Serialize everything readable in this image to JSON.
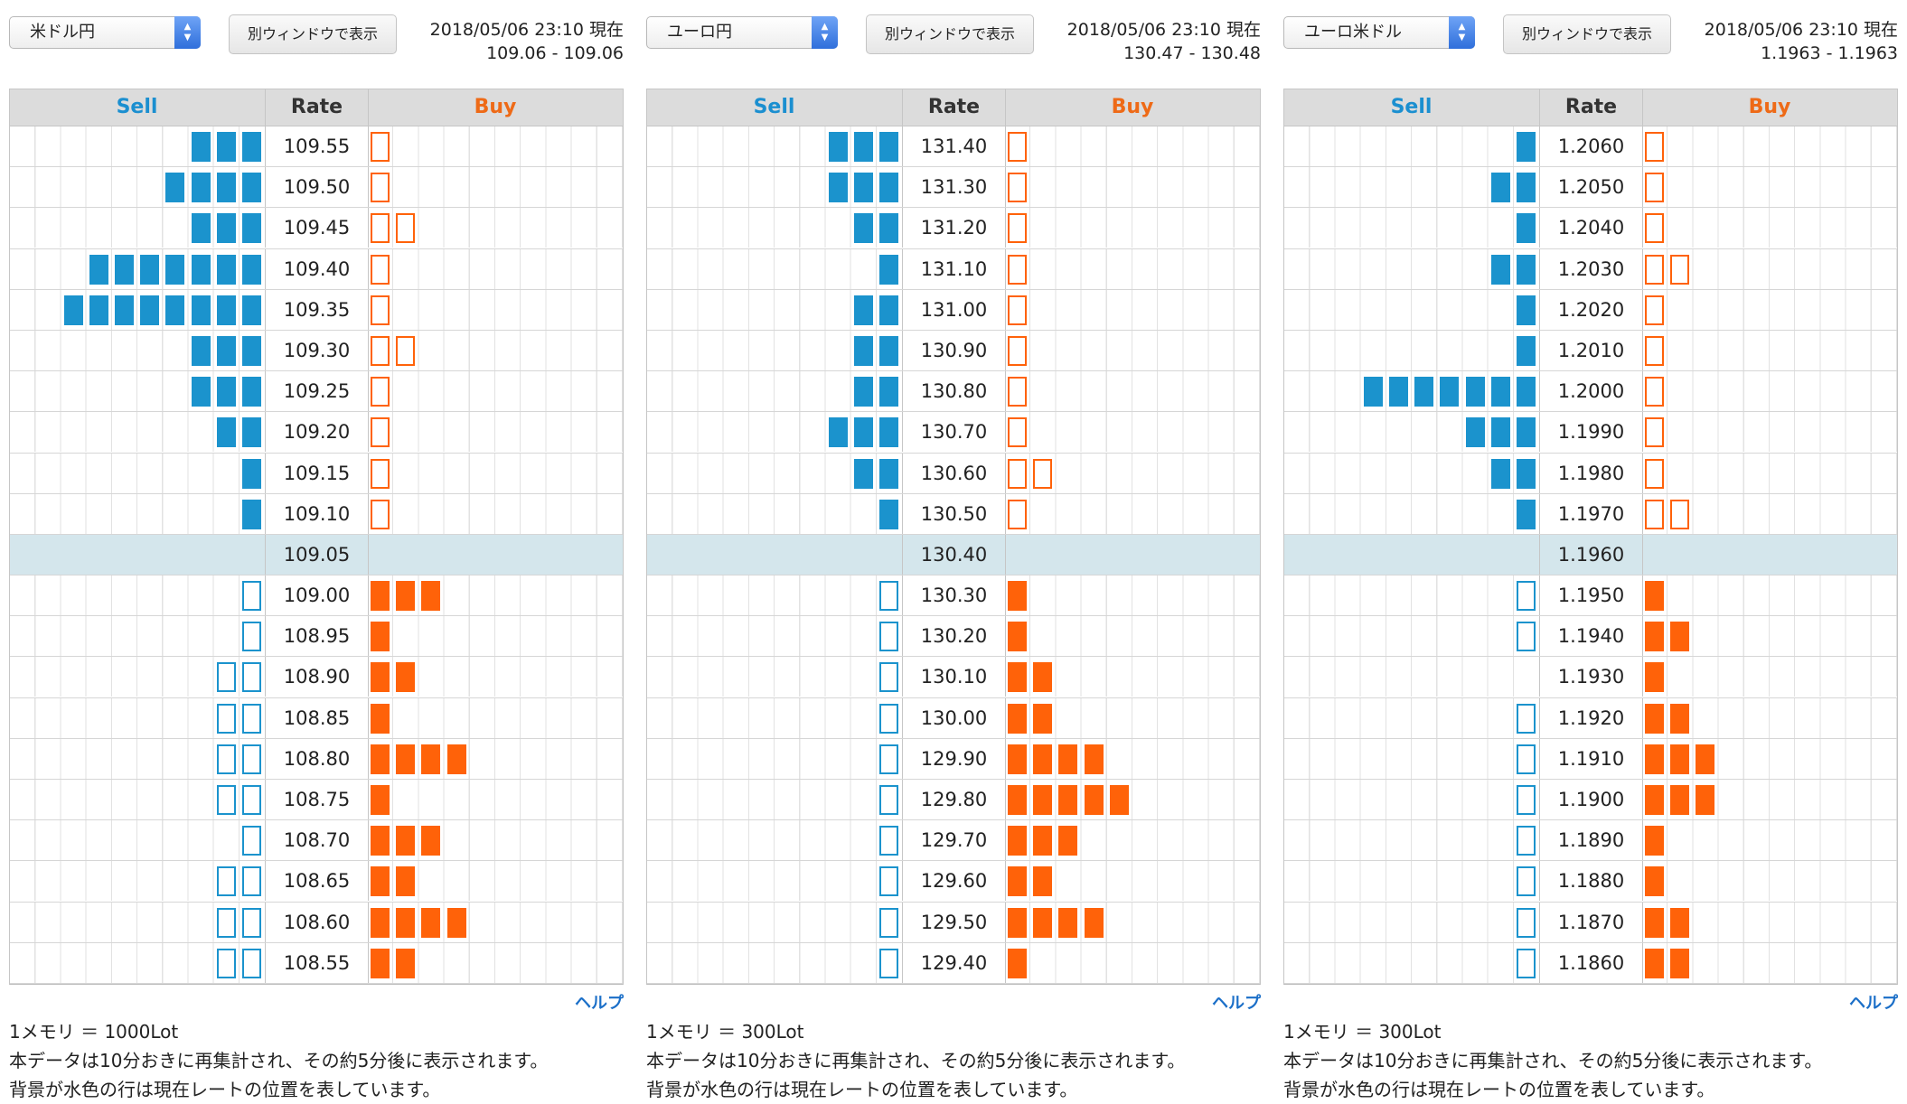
{
  "colors": {
    "sell": "#1b93cd",
    "buy": "#ff6209",
    "current_row": "#d4e6ec",
    "help_link": "#1b6fc8"
  },
  "icons": {
    "select_arrows": "up-down-chevron-icon"
  },
  "panels": [
    {
      "pair": "米ドル円",
      "window_button": "別ウィンドウで表示",
      "timestamp": "2018/05/06 23:10 現在",
      "quote": "109.06 - 109.06",
      "headers": {
        "sell": "Sell",
        "rate": "Rate",
        "buy": "Buy"
      },
      "current_rate": "109.05",
      "rows": [
        {
          "rate": "109.55",
          "sell_filled": 3,
          "sell_outline": 0,
          "buy_filled": 0,
          "buy_outline": 1
        },
        {
          "rate": "109.50",
          "sell_filled": 4,
          "sell_outline": 0,
          "buy_filled": 0,
          "buy_outline": 1
        },
        {
          "rate": "109.45",
          "sell_filled": 3,
          "sell_outline": 0,
          "buy_filled": 0,
          "buy_outline": 2
        },
        {
          "rate": "109.40",
          "sell_filled": 7,
          "sell_outline": 0,
          "buy_filled": 0,
          "buy_outline": 1
        },
        {
          "rate": "109.35",
          "sell_filled": 8,
          "sell_outline": 0,
          "buy_filled": 0,
          "buy_outline": 1
        },
        {
          "rate": "109.30",
          "sell_filled": 3,
          "sell_outline": 0,
          "buy_filled": 0,
          "buy_outline": 2
        },
        {
          "rate": "109.25",
          "sell_filled": 3,
          "sell_outline": 0,
          "buy_filled": 0,
          "buy_outline": 1
        },
        {
          "rate": "109.20",
          "sell_filled": 2,
          "sell_outline": 0,
          "buy_filled": 0,
          "buy_outline": 1
        },
        {
          "rate": "109.15",
          "sell_filled": 1,
          "sell_outline": 0,
          "buy_filled": 0,
          "buy_outline": 1
        },
        {
          "rate": "109.10",
          "sell_filled": 1,
          "sell_outline": 0,
          "buy_filled": 0,
          "buy_outline": 1
        },
        {
          "rate": "109.05",
          "sell_filled": 0,
          "sell_outline": 0,
          "buy_filled": 0,
          "buy_outline": 0,
          "current": true
        },
        {
          "rate": "109.00",
          "sell_filled": 0,
          "sell_outline": 1,
          "buy_filled": 3,
          "buy_outline": 0
        },
        {
          "rate": "108.95",
          "sell_filled": 0,
          "sell_outline": 1,
          "buy_filled": 1,
          "buy_outline": 0
        },
        {
          "rate": "108.90",
          "sell_filled": 0,
          "sell_outline": 2,
          "buy_filled": 2,
          "buy_outline": 0
        },
        {
          "rate": "108.85",
          "sell_filled": 0,
          "sell_outline": 2,
          "buy_filled": 1,
          "buy_outline": 0
        },
        {
          "rate": "108.80",
          "sell_filled": 0,
          "sell_outline": 2,
          "buy_filled": 4,
          "buy_outline": 0
        },
        {
          "rate": "108.75",
          "sell_filled": 0,
          "sell_outline": 2,
          "buy_filled": 1,
          "buy_outline": 0
        },
        {
          "rate": "108.70",
          "sell_filled": 0,
          "sell_outline": 1,
          "buy_filled": 3,
          "buy_outline": 0
        },
        {
          "rate": "108.65",
          "sell_filled": 0,
          "sell_outline": 2,
          "buy_filled": 2,
          "buy_outline": 0
        },
        {
          "rate": "108.60",
          "sell_filled": 0,
          "sell_outline": 2,
          "buy_filled": 4,
          "buy_outline": 0
        },
        {
          "rate": "108.55",
          "sell_filled": 0,
          "sell_outline": 2,
          "buy_filled": 2,
          "buy_outline": 0
        }
      ],
      "help": "ヘルプ",
      "lot_note": "1メモリ ＝ 1000Lot",
      "note_1": "本データは10分おきに再集計され、その約5分後に表示されます。",
      "note_2": "背景が水色の行は現在レートの位置を表しています。"
    },
    {
      "pair": "ユーロ円",
      "window_button": "別ウィンドウで表示",
      "timestamp": "2018/05/06 23:10 現在",
      "quote": "130.47 - 130.48",
      "headers": {
        "sell": "Sell",
        "rate": "Rate",
        "buy": "Buy"
      },
      "current_rate": "130.40",
      "rows": [
        {
          "rate": "131.40",
          "sell_filled": 3,
          "sell_outline": 0,
          "buy_filled": 0,
          "buy_outline": 1
        },
        {
          "rate": "131.30",
          "sell_filled": 3,
          "sell_outline": 0,
          "buy_filled": 0,
          "buy_outline": 1
        },
        {
          "rate": "131.20",
          "sell_filled": 2,
          "sell_outline": 0,
          "buy_filled": 0,
          "buy_outline": 1
        },
        {
          "rate": "131.10",
          "sell_filled": 1,
          "sell_outline": 0,
          "buy_filled": 0,
          "buy_outline": 1
        },
        {
          "rate": "131.00",
          "sell_filled": 2,
          "sell_outline": 0,
          "buy_filled": 0,
          "buy_outline": 1
        },
        {
          "rate": "130.90",
          "sell_filled": 2,
          "sell_outline": 0,
          "buy_filled": 0,
          "buy_outline": 1
        },
        {
          "rate": "130.80",
          "sell_filled": 2,
          "sell_outline": 0,
          "buy_filled": 0,
          "buy_outline": 1
        },
        {
          "rate": "130.70",
          "sell_filled": 3,
          "sell_outline": 0,
          "buy_filled": 0,
          "buy_outline": 1
        },
        {
          "rate": "130.60",
          "sell_filled": 2,
          "sell_outline": 0,
          "buy_filled": 0,
          "buy_outline": 2
        },
        {
          "rate": "130.50",
          "sell_filled": 1,
          "sell_outline": 0,
          "buy_filled": 0,
          "buy_outline": 1
        },
        {
          "rate": "130.40",
          "sell_filled": 0,
          "sell_outline": 0,
          "buy_filled": 0,
          "buy_outline": 0,
          "current": true
        },
        {
          "rate": "130.30",
          "sell_filled": 0,
          "sell_outline": 1,
          "buy_filled": 1,
          "buy_outline": 0
        },
        {
          "rate": "130.20",
          "sell_filled": 0,
          "sell_outline": 1,
          "buy_filled": 1,
          "buy_outline": 0
        },
        {
          "rate": "130.10",
          "sell_filled": 0,
          "sell_outline": 1,
          "buy_filled": 2,
          "buy_outline": 0
        },
        {
          "rate": "130.00",
          "sell_filled": 0,
          "sell_outline": 1,
          "buy_filled": 2,
          "buy_outline": 0
        },
        {
          "rate": "129.90",
          "sell_filled": 0,
          "sell_outline": 1,
          "buy_filled": 4,
          "buy_outline": 0
        },
        {
          "rate": "129.80",
          "sell_filled": 0,
          "sell_outline": 1,
          "buy_filled": 5,
          "buy_outline": 0
        },
        {
          "rate": "129.70",
          "sell_filled": 0,
          "sell_outline": 1,
          "buy_filled": 3,
          "buy_outline": 0
        },
        {
          "rate": "129.60",
          "sell_filled": 0,
          "sell_outline": 1,
          "buy_filled": 2,
          "buy_outline": 0
        },
        {
          "rate": "129.50",
          "sell_filled": 0,
          "sell_outline": 1,
          "buy_filled": 4,
          "buy_outline": 0
        },
        {
          "rate": "129.40",
          "sell_filled": 0,
          "sell_outline": 1,
          "buy_filled": 1,
          "buy_outline": 0
        }
      ],
      "help": "ヘルプ",
      "lot_note": "1メモリ ＝ 300Lot",
      "note_1": "本データは10分おきに再集計され、その約5分後に表示されます。",
      "note_2": "背景が水色の行は現在レートの位置を表しています。"
    },
    {
      "pair": "ユーロ米ドル",
      "window_button": "別ウィンドウで表示",
      "timestamp": "2018/05/06 23:10 現在",
      "quote": "1.1963 - 1.1963",
      "headers": {
        "sell": "Sell",
        "rate": "Rate",
        "buy": "Buy"
      },
      "current_rate": "1.1960",
      "rows": [
        {
          "rate": "1.2060",
          "sell_filled": 1,
          "sell_outline": 0,
          "buy_filled": 0,
          "buy_outline": 1
        },
        {
          "rate": "1.2050",
          "sell_filled": 2,
          "sell_outline": 0,
          "buy_filled": 0,
          "buy_outline": 1
        },
        {
          "rate": "1.2040",
          "sell_filled": 1,
          "sell_outline": 0,
          "buy_filled": 0,
          "buy_outline": 1
        },
        {
          "rate": "1.2030",
          "sell_filled": 2,
          "sell_outline": 0,
          "buy_filled": 0,
          "buy_outline": 2
        },
        {
          "rate": "1.2020",
          "sell_filled": 1,
          "sell_outline": 0,
          "buy_filled": 0,
          "buy_outline": 1
        },
        {
          "rate": "1.2010",
          "sell_filled": 1,
          "sell_outline": 0,
          "buy_filled": 0,
          "buy_outline": 1
        },
        {
          "rate": "1.2000",
          "sell_filled": 7,
          "sell_outline": 0,
          "buy_filled": 0,
          "buy_outline": 1
        },
        {
          "rate": "1.1990",
          "sell_filled": 3,
          "sell_outline": 0,
          "buy_filled": 0,
          "buy_outline": 1
        },
        {
          "rate": "1.1980",
          "sell_filled": 2,
          "sell_outline": 0,
          "buy_filled": 0,
          "buy_outline": 1
        },
        {
          "rate": "1.1970",
          "sell_filled": 1,
          "sell_outline": 0,
          "buy_filled": 0,
          "buy_outline": 2
        },
        {
          "rate": "1.1960",
          "sell_filled": 0,
          "sell_outline": 0,
          "buy_filled": 0,
          "buy_outline": 0,
          "current": true
        },
        {
          "rate": "1.1950",
          "sell_filled": 0,
          "sell_outline": 1,
          "buy_filled": 1,
          "buy_outline": 0
        },
        {
          "rate": "1.1940",
          "sell_filled": 0,
          "sell_outline": 1,
          "buy_filled": 2,
          "buy_outline": 0
        },
        {
          "rate": "1.1930",
          "sell_filled": 0,
          "sell_outline": 0,
          "buy_filled": 1,
          "buy_outline": 0
        },
        {
          "rate": "1.1920",
          "sell_filled": 0,
          "sell_outline": 1,
          "buy_filled": 2,
          "buy_outline": 0
        },
        {
          "rate": "1.1910",
          "sell_filled": 0,
          "sell_outline": 1,
          "buy_filled": 3,
          "buy_outline": 0
        },
        {
          "rate": "1.1900",
          "sell_filled": 0,
          "sell_outline": 1,
          "buy_filled": 3,
          "buy_outline": 0
        },
        {
          "rate": "1.1890",
          "sell_filled": 0,
          "sell_outline": 1,
          "buy_filled": 1,
          "buy_outline": 0
        },
        {
          "rate": "1.1880",
          "sell_filled": 0,
          "sell_outline": 1,
          "buy_filled": 1,
          "buy_outline": 0
        },
        {
          "rate": "1.1870",
          "sell_filled": 0,
          "sell_outline": 1,
          "buy_filled": 2,
          "buy_outline": 0
        },
        {
          "rate": "1.1860",
          "sell_filled": 0,
          "sell_outline": 1,
          "buy_filled": 2,
          "buy_outline": 0
        }
      ],
      "help": "ヘルプ",
      "lot_note": "1メモリ ＝ 300Lot",
      "note_1": "本データは10分おきに再集計され、その約5分後に表示されます。",
      "note_2": "背景が水色の行は現在レートの位置を表しています。"
    }
  ]
}
